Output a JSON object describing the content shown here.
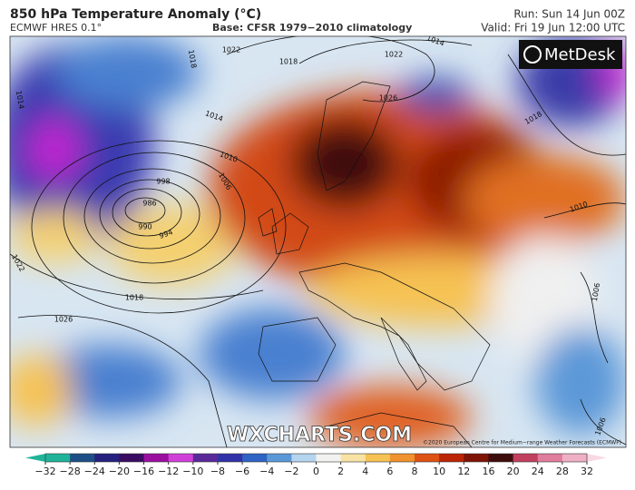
{
  "header": {
    "title": "850 hPa Temperature Anomaly (°C)",
    "model": "ECMWF HRES 0.1°",
    "base": "Base: CFSR 1979-2010 climatology",
    "run": "Run: Sun 14 Jun 00Z",
    "valid": "Valid: Fri 19 Jun 12:00 UTC"
  },
  "map": {
    "logo": "MetDesk",
    "watermark": "WXCHARTS.COM",
    "copyright": "©2020 European Centre for Medium-range Weather Forecasts (ECMWF)",
    "isobar_labels": [
      "1018",
      "1022",
      "1018",
      "1022",
      "1014",
      "1026",
      "1014",
      "1010",
      "1006",
      "998",
      "986",
      "990",
      "994",
      "1018",
      "1022",
      "1026",
      "1018",
      "1010",
      "1006",
      "1014",
      "1006"
    ]
  },
  "colorbar": {
    "ticks": [
      -32,
      -28,
      -24,
      -20,
      -16,
      -12,
      -10,
      -8,
      -6,
      -4,
      -2,
      0,
      2,
      4,
      6,
      8,
      10,
      12,
      16,
      20,
      24,
      28,
      32
    ],
    "colors": [
      "#1fb39a",
      "#1d4f86",
      "#26207e",
      "#3a0c62",
      "#9a0fa0",
      "#d040d8",
      "#5a2a9a",
      "#3232a8",
      "#2f63c4",
      "#5b98d8",
      "#b5d5ee",
      "#f2f2f0",
      "#f8e3a4",
      "#f6c253",
      "#f0922e",
      "#de5214",
      "#bb2405",
      "#7e1406",
      "#3d0e0c",
      "#c2405e",
      "#e07c9c",
      "#efb0c6",
      "#f8d8e2"
    ]
  }
}
